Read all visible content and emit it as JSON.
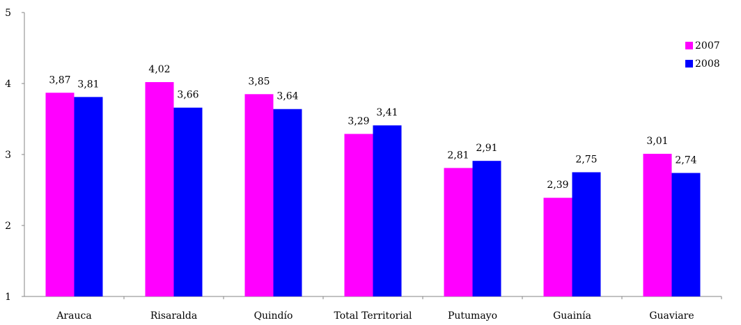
{
  "chart_data": {
    "type": "bar",
    "categories": [
      "Arauca",
      "Risaralda",
      "Quindío",
      "Total Territorial",
      "Putumayo",
      "Guainía",
      "Guaviare"
    ],
    "series": [
      {
        "name": "2007",
        "color": "#FF00FF",
        "values": [
          3.87,
          4.02,
          3.85,
          3.29,
          2.81,
          2.39,
          3.01
        ],
        "labels": [
          "3,87",
          "4,02",
          "3,85",
          "3,29",
          "2,81",
          "2,39",
          "3,01"
        ]
      },
      {
        "name": "2008",
        "color": "#0000FF",
        "values": [
          3.81,
          3.66,
          3.64,
          3.41,
          2.91,
          2.75,
          2.74
        ],
        "labels": [
          "3,81",
          "3,66",
          "3,64",
          "3,41",
          "2,91",
          "2,75",
          "2,74"
        ]
      }
    ],
    "ylim": [
      1,
      5
    ],
    "yticks": [
      "1",
      "2",
      "3",
      "4",
      "5"
    ],
    "grid": false,
    "legend_position": "top-right",
    "title": "",
    "xlabel": "",
    "ylabel": ""
  }
}
